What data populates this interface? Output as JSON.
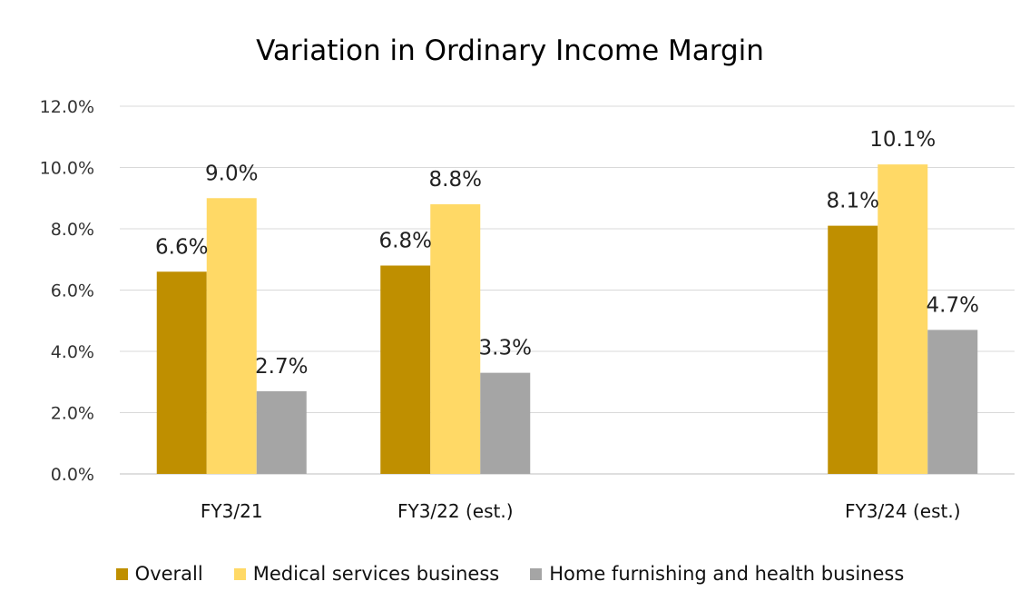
{
  "chart_data": {
    "type": "bar",
    "title": "Variation in Ordinary Income Margin",
    "categories": [
      "FY3/21",
      "FY3/22 (est.)",
      "",
      "FY3/24 (est.)"
    ],
    "series": [
      {
        "name": "Overall",
        "color": "#BF8F00",
        "values": [
          6.6,
          6.8,
          null,
          8.1
        ],
        "labels": [
          "6.6%",
          "6.8%",
          "",
          "8.1%"
        ]
      },
      {
        "name": "Medical services business",
        "color": "#FFD966",
        "values": [
          9.0,
          8.8,
          null,
          10.1
        ],
        "labels": [
          "9.0%",
          "8.8%",
          "",
          "10.1%"
        ]
      },
      {
        "name": "Home furnishing and health business",
        "color": "#A5A5A5",
        "values": [
          2.7,
          3.3,
          null,
          4.7
        ],
        "labels": [
          "2.7%",
          "3.3%",
          "",
          "4.7%"
        ]
      }
    ],
    "ylim": [
      0,
      12
    ],
    "yticks": [
      0,
      2,
      4,
      6,
      8,
      10,
      12
    ],
    "ytick_labels": [
      "0.0%",
      "2.0%",
      "4.0%",
      "6.0%",
      "8.0%",
      "10.0%",
      "12.0%"
    ],
    "grid": true,
    "legend_position": "bottom"
  }
}
